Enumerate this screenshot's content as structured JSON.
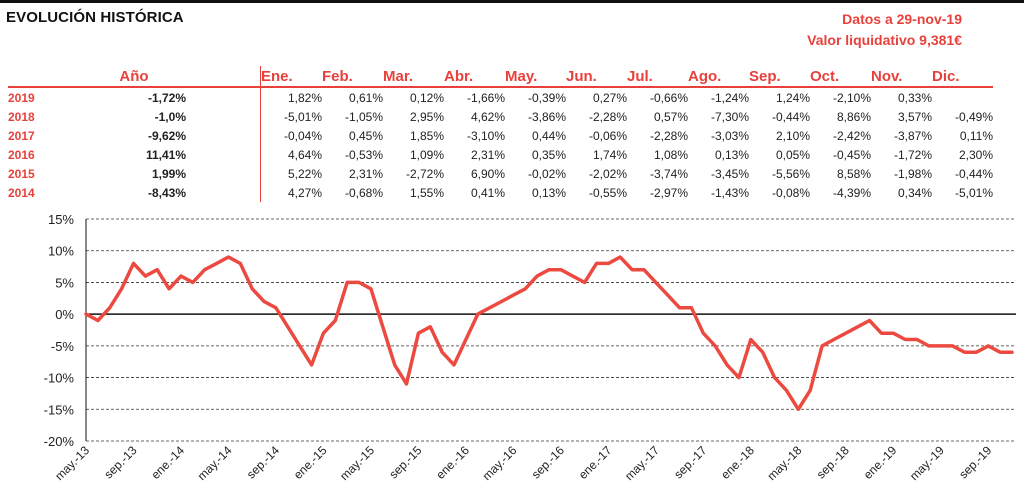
{
  "header": {
    "title": "EVOLUCIÓN HISTÓRICA",
    "date_label": "Datos a 29-nov-19",
    "nav_label": "Valor liquidativo 9,381€"
  },
  "table": {
    "columns": {
      "year_col": "Año",
      "months": [
        "Ene.",
        "Feb.",
        "Mar.",
        "Abr.",
        "May.",
        "Jun.",
        "Jul.",
        "Ago.",
        "Sep.",
        "Oct.",
        "Nov.",
        "Dic."
      ]
    },
    "rows": [
      {
        "year": "2019",
        "annual": "-1,72%",
        "months": [
          "1,82%",
          "0,61%",
          "0,12%",
          "-1,66%",
          "-0,39%",
          "0,27%",
          "-0,66%",
          "-1,24%",
          "1,24%",
          "-2,10%",
          "0,33%",
          ""
        ]
      },
      {
        "year": "2018",
        "annual": "-1,0%",
        "months": [
          "-5,01%",
          "-1,05%",
          "2,95%",
          "4,62%",
          "-3,86%",
          "-2,28%",
          "0,57%",
          "-7,30%",
          "-0,44%",
          "8,86%",
          "3,57%",
          "-0,49%"
        ]
      },
      {
        "year": "2017",
        "annual": "-9,62%",
        "months": [
          "-0,04%",
          "0,45%",
          "1,85%",
          "-3,10%",
          "0,44%",
          "-0,06%",
          "-2,28%",
          "-3,03%",
          "2,10%",
          "-2,42%",
          "-3,87%",
          "0,11%"
        ]
      },
      {
        "year": "2016",
        "annual": "11,41%",
        "months": [
          "4,64%",
          "-0,53%",
          "1,09%",
          "2,31%",
          "0,35%",
          "1,74%",
          "1,08%",
          "0,13%",
          "0,05%",
          "-0,45%",
          "-1,72%",
          "2,30%"
        ]
      },
      {
        "year": "2015",
        "annual": "1,99%",
        "months": [
          "5,22%",
          "2,31%",
          "-2,72%",
          "6,90%",
          "-0,02%",
          "-2,02%",
          "-3,74%",
          "-3,45%",
          "-5,56%",
          "8,58%",
          "-1,98%",
          "-0,44%"
        ]
      },
      {
        "year": "2014",
        "annual": "-8,43%",
        "months": [
          "4,27%",
          "-0,68%",
          "1,55%",
          "0,41%",
          "0,13%",
          "-0,55%",
          "-2,97%",
          "-1,43%",
          "-0,08%",
          "-4,39%",
          "0,34%",
          "-5,01%"
        ]
      }
    ]
  },
  "chart_data": {
    "type": "line",
    "title": "",
    "xlabel": "",
    "ylabel": "",
    "ylim": [
      -20,
      15
    ],
    "ytick_labels": [
      "15%",
      "10%",
      "5%",
      "0%",
      "-5%",
      "-10%",
      "-15%",
      "-20%"
    ],
    "ytick_values": [
      15,
      10,
      5,
      0,
      -5,
      -10,
      -15,
      -20
    ],
    "xtick_labels": [
      "may.-13",
      "sep.-13",
      "ene.-14",
      "may.-14",
      "sep.-14",
      "ene.-15",
      "may.-15",
      "sep.-15",
      "ene.-16",
      "may.-16",
      "sep.-16",
      "ene.-17",
      "may.-17",
      "sep.-17",
      "ene.-18",
      "may.-18",
      "sep.-18",
      "ene.-19",
      "may.-19",
      "sep.-19"
    ],
    "x_range": [
      "2013-05",
      "2019-11"
    ],
    "grid": "horizontal dashed",
    "line_color": "#ec4a40",
    "series": [
      {
        "name": "",
        "x": [
          "2013-05",
          "2013-06",
          "2013-07",
          "2013-08",
          "2013-09",
          "2013-10",
          "2013-11",
          "2013-12",
          "2014-01",
          "2014-02",
          "2014-03",
          "2014-04",
          "2014-05",
          "2014-06",
          "2014-07",
          "2014-08",
          "2014-09",
          "2014-10",
          "2014-11",
          "2014-12",
          "2015-01",
          "2015-02",
          "2015-03",
          "2015-04",
          "2015-05",
          "2015-06",
          "2015-07",
          "2015-08",
          "2015-09",
          "2015-10",
          "2015-11",
          "2015-12",
          "2016-01",
          "2016-02",
          "2016-03",
          "2016-04",
          "2016-05",
          "2016-06",
          "2016-07",
          "2016-08",
          "2016-09",
          "2016-10",
          "2016-11",
          "2016-12",
          "2017-01",
          "2017-02",
          "2017-03",
          "2017-04",
          "2017-05",
          "2017-06",
          "2017-07",
          "2017-08",
          "2017-09",
          "2017-10",
          "2017-11",
          "2017-12",
          "2018-01",
          "2018-02",
          "2018-03",
          "2018-04",
          "2018-05",
          "2018-06",
          "2018-07",
          "2018-08",
          "2018-09",
          "2018-10",
          "2018-11",
          "2018-12",
          "2019-01",
          "2019-02",
          "2019-03",
          "2019-04",
          "2019-05",
          "2019-06",
          "2019-07",
          "2019-08",
          "2019-09",
          "2019-10",
          "2019-11"
        ],
        "values": [
          0,
          -1,
          1,
          4,
          8,
          6,
          7,
          4,
          6,
          5,
          7,
          8,
          9,
          8,
          4,
          2,
          1,
          -2,
          -5,
          -8,
          -3,
          -1,
          5,
          5,
          4,
          -2,
          -8,
          -11,
          -3,
          -2,
          -6,
          -8,
          -4,
          0,
          1,
          2,
          3,
          4,
          6,
          7,
          7,
          6,
          5,
          8,
          8,
          9,
          7,
          7,
          5,
          3,
          1,
          1,
          -3,
          -5,
          -8,
          -10,
          -4,
          -6,
          -10,
          -12,
          -15,
          -12,
          -5,
          -4,
          -3,
          -2,
          -1,
          -3,
          -3,
          -4,
          -4,
          -5,
          -5,
          -5,
          -6,
          -6,
          -5,
          -6,
          -6
        ]
      }
    ]
  }
}
